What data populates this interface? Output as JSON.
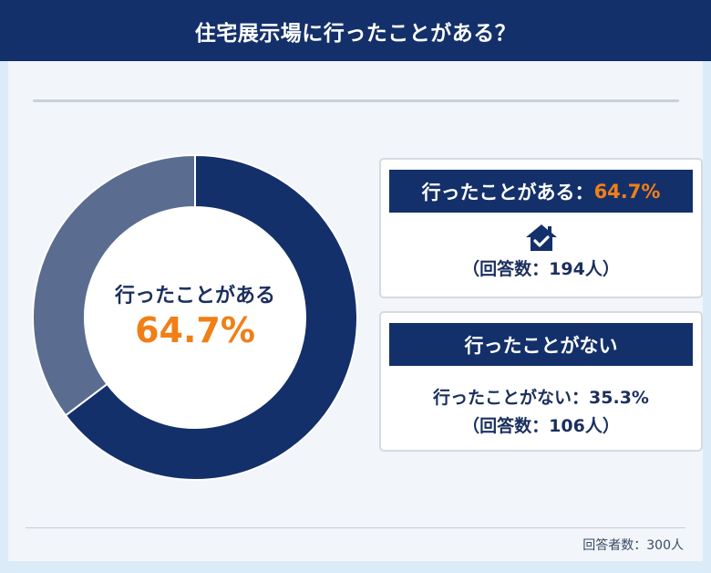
{
  "header": {
    "title": "住宅展示場に行ったことがある？"
  },
  "donut": {
    "center_label": "行ったことがある",
    "center_value": "64.7%"
  },
  "cards": [
    {
      "head_label": "行ったことがある：",
      "head_value": "64.7%",
      "icon": "house-check-icon",
      "sub": "（回答数：194人）"
    },
    {
      "head_label": "行ったことがない",
      "line1": "行ったことがない：35.3%",
      "line2": "（回答数：106人）"
    }
  ],
  "footer": {
    "note": "回答者数：300人"
  },
  "colors": {
    "primary": "#14306a",
    "secondary": "#5a6d90",
    "accent": "#f07f17"
  },
  "chart_data": {
    "type": "pie",
    "variant": "donut",
    "title": "住宅展示場に行ったことがある？",
    "categories": [
      "行ったことがある",
      "行ったことがない"
    ],
    "values": [
      64.7,
      35.3
    ],
    "counts": [
      194,
      106
    ],
    "total_respondents": 300,
    "colors": [
      "#14306a",
      "#5a6d90"
    ],
    "center_annotation": "行ったことがある 64.7%",
    "start_angle": "12 o'clock, clockwise",
    "legend": "cards on right"
  }
}
